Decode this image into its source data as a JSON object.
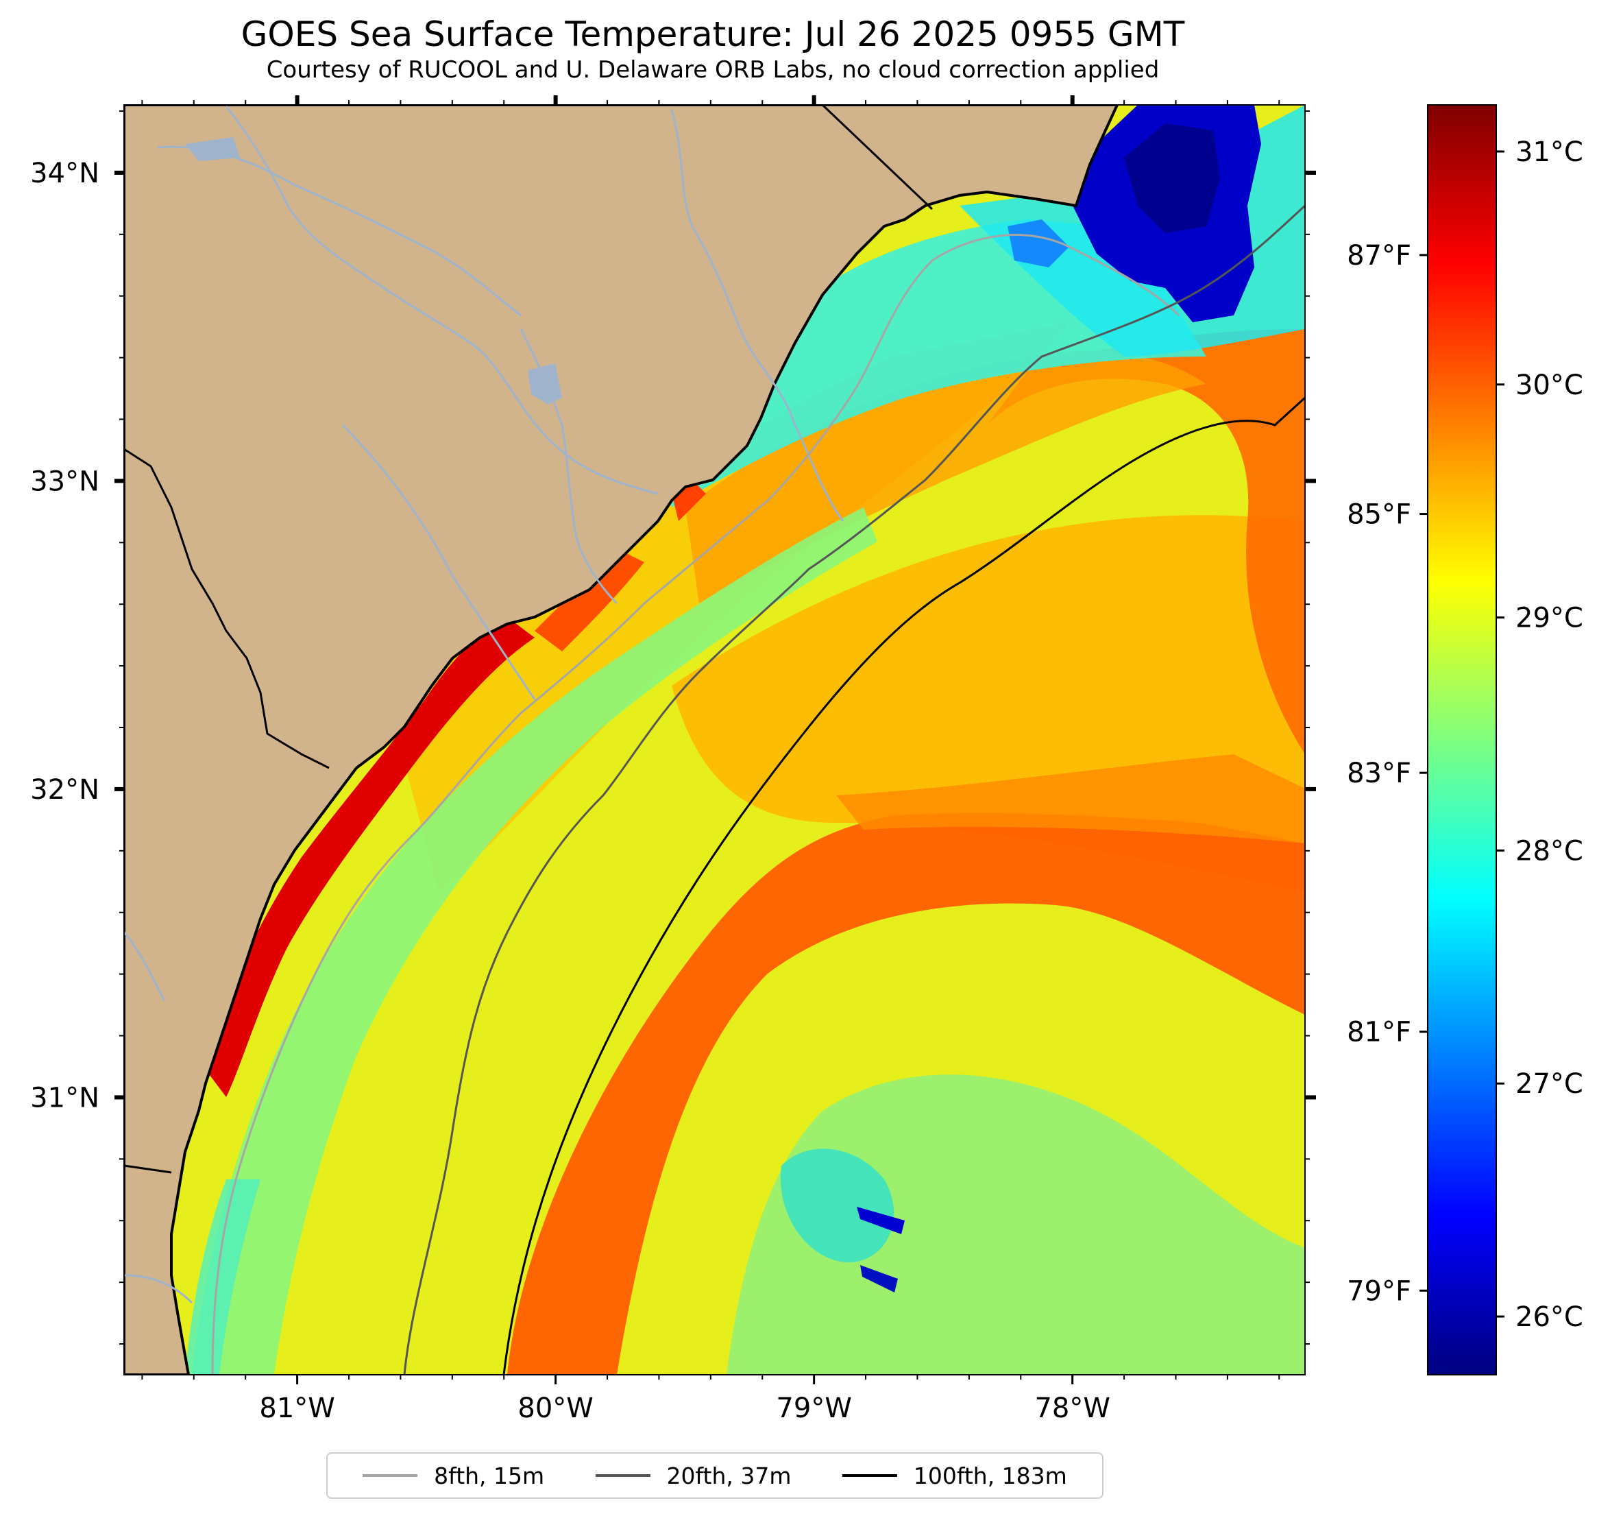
{
  "title": "GOES Sea Surface Temperature: Jul 26 2025 0955 GMT",
  "subtitle": "Courtesy of RUCOOL and U. Delaware ORB Labs, no cloud correction applied",
  "map": {
    "lon_range": [
      -81.67,
      -77.1
    ],
    "lat_range": [
      30.1,
      34.22
    ],
    "x_ticks": [
      {
        "value": -81,
        "label": "81°W"
      },
      {
        "value": -80,
        "label": "80°W"
      },
      {
        "value": -79,
        "label": "79°W"
      },
      {
        "value": -78,
        "label": "78°W"
      }
    ],
    "y_ticks": [
      {
        "value": 34,
        "label": "34°N"
      },
      {
        "value": 33,
        "label": "33°N"
      },
      {
        "value": 32,
        "label": "32°N"
      },
      {
        "value": 31,
        "label": "31°N"
      }
    ],
    "colors": {
      "land": "#d2b48c",
      "river": "#9fb4cc",
      "isobath_8": "#a6a6a6",
      "isobath_20": "#555555",
      "isobath_100": "#000000"
    }
  },
  "colorbar": {
    "range_c": [
      25.75,
      31.2
    ],
    "celsius_ticks": [
      {
        "value": 26,
        "label": "26°C"
      },
      {
        "value": 27,
        "label": "27°C"
      },
      {
        "value": 28,
        "label": "28°C"
      },
      {
        "value": 29,
        "label": "29°C"
      },
      {
        "value": 30,
        "label": "30°C"
      },
      {
        "value": 31,
        "label": "31°C"
      }
    ],
    "fahrenheit_ticks": [
      {
        "value": 79,
        "label": "79°F"
      },
      {
        "value": 81,
        "label": "81°F"
      },
      {
        "value": 83,
        "label": "83°F"
      },
      {
        "value": 85,
        "label": "85°F"
      },
      {
        "value": 87,
        "label": "87°F"
      }
    ],
    "colormap": [
      "#00007f",
      "#0000ff",
      "#007fff",
      "#00ffff",
      "#7fff7f",
      "#ffff00",
      "#ff7f00",
      "#ff0000",
      "#7f0000"
    ]
  },
  "legend": [
    {
      "label": "8fth, 15m",
      "color": "#a6a6a6"
    },
    {
      "label": "20fth, 37m",
      "color": "#555555"
    },
    {
      "label": "100fth, 183m",
      "color": "#000000"
    }
  ]
}
